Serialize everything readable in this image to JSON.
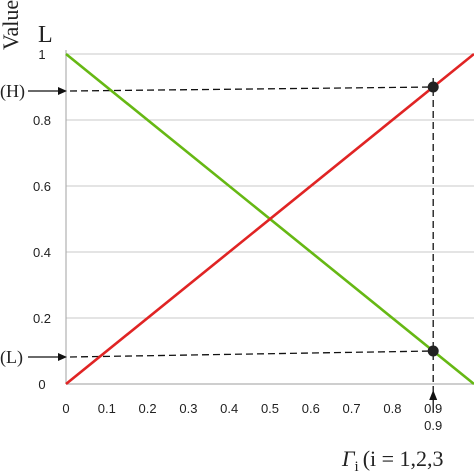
{
  "chart_data": {
    "type": "line",
    "ylabel": "Value",
    "top_label": "L",
    "xlabel_symbol": "Γ",
    "xlabel_subscript": "i",
    "xlabel_rest": "(i = 1,2,3",
    "xlim": [
      0,
      1
    ],
    "ylim": [
      0,
      1
    ],
    "x_ticks": [
      "0",
      "0.1",
      "0.2",
      "0.3",
      "0.4",
      "0.5",
      "0.6",
      "0.7",
      "0.8",
      "0.9"
    ],
    "y_ticks": [
      "0",
      "0.2",
      "0.4",
      "0.6",
      "0.8",
      "1"
    ],
    "grid": true,
    "series": [
      {
        "color": "#66b814",
        "x": [
          0,
          1
        ],
        "y": [
          1,
          0
        ]
      },
      {
        "color": "#e02424",
        "x": [
          0,
          1
        ],
        "y": [
          0,
          1
        ]
      }
    ],
    "markers": [
      {
        "x": 0.9,
        "y": 0.9,
        "label": "(H)"
      },
      {
        "x": 0.9,
        "y": 0.1,
        "label": "(L)"
      }
    ],
    "x_marker_label": "0.9",
    "x_marker_value": 0.9
  }
}
